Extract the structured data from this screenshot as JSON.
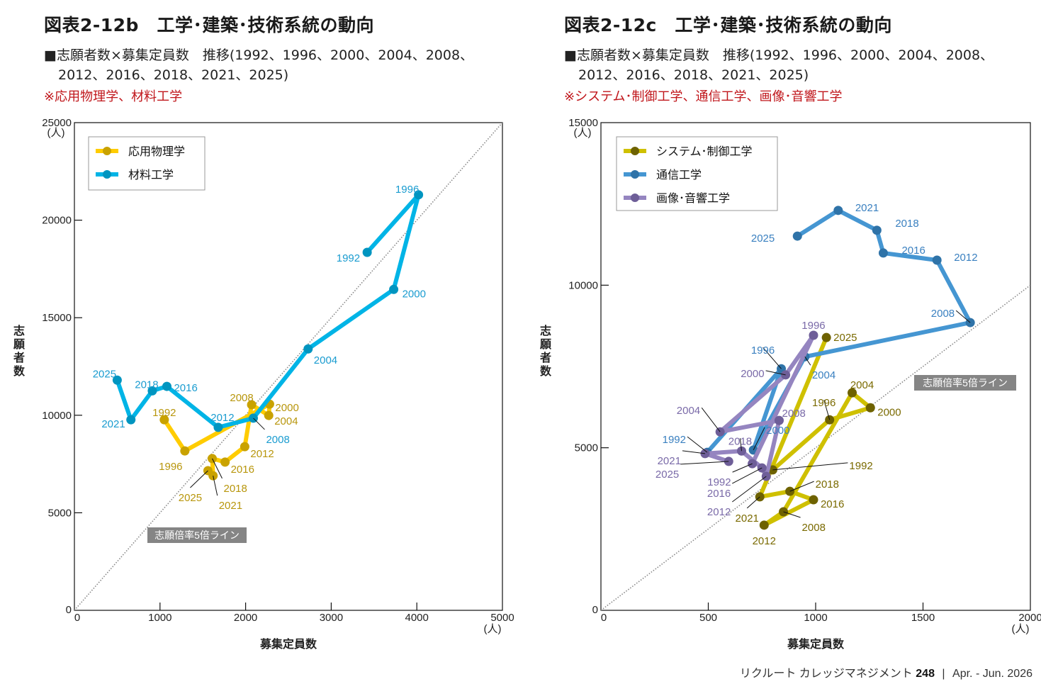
{
  "footer": {
    "magazine": "リクルート カレッジマネジメント",
    "issue": "248",
    "separator": "|",
    "date": "Apr. - Jun. 2026"
  },
  "chart_data": [
    {
      "id": "fig-2-12b",
      "type": "line",
      "title": "図表2-12b　工学･建築･技術系統の動向",
      "subtitle_line1": "■志願者数×募集定員数　推移(1992、1996、2000、2004、2008、",
      "subtitle_line2": "2012、2016、2018、2021、2025)",
      "note": "※応用物理学、材料工学",
      "xlabel": "募集定員数",
      "ylabel": "志願者数",
      "x_unit": "(人)",
      "y_unit": "(人)",
      "xlim": [
        0,
        5000
      ],
      "ylim": [
        0,
        25000
      ],
      "xticks": [
        0,
        1000,
        2000,
        3000,
        4000,
        5000
      ],
      "yticks": [
        0,
        5000,
        10000,
        15000,
        20000,
        25000
      ],
      "grid": false,
      "legend_position": "top-left",
      "reference_line": {
        "label": "志願倍率5倍ライン",
        "ratio": 5
      },
      "series": [
        {
          "name": "応用物理学",
          "line_color": "#ffcc00",
          "marker_color": "#c9a200",
          "label_color": "#b8960c",
          "points": [
            {
              "year": "1992",
              "x": 1050,
              "y": 9770
            },
            {
              "year": "1996",
              "x": 1290,
              "y": 8170
            },
            {
              "year": "2000",
              "x": 2280,
              "y": 10570
            },
            {
              "year": "2004",
              "x": 2270,
              "y": 9990
            },
            {
              "year": "2008",
              "x": 2070,
              "y": 10540
            },
            {
              "year": "2012",
              "x": 1990,
              "y": 8390
            },
            {
              "year": "2016",
              "x": 1760,
              "y": 7600
            },
            {
              "year": "2018",
              "x": 1610,
              "y": 7780
            },
            {
              "year": "2021",
              "x": 1620,
              "y": 6900
            },
            {
              "year": "2025",
              "x": 1560,
              "y": 7160
            }
          ]
        },
        {
          "name": "材料工学",
          "line_color": "#00b4e6",
          "marker_color": "#0095c0",
          "label_color": "#1a9cd0",
          "points": [
            {
              "year": "1992",
              "x": 3420,
              "y": 18350
            },
            {
              "year": "1996",
              "x": 4020,
              "y": 21300
            },
            {
              "year": "2000",
              "x": 3730,
              "y": 16450
            },
            {
              "year": "2004",
              "x": 2730,
              "y": 13400
            },
            {
              "year": "2008",
              "x": 2090,
              "y": 9850
            },
            {
              "year": "2012",
              "x": 1680,
              "y": 9380
            },
            {
              "year": "2016",
              "x": 1080,
              "y": 11480
            },
            {
              "year": "2018",
              "x": 910,
              "y": 11250
            },
            {
              "year": "2021",
              "x": 660,
              "y": 9770
            },
            {
              "year": "2025",
              "x": 500,
              "y": 11800
            }
          ]
        }
      ]
    },
    {
      "id": "fig-2-12c",
      "type": "line",
      "title": "図表2-12c　工学･建築･技術系統の動向",
      "subtitle_line1": "■志願者数×募集定員数　推移(1992、1996、2000、2004、2008、",
      "subtitle_line2": "2012、2016、2018、2021、2025)",
      "note": "※システム･制御工学、通信工学、画像･音響工学",
      "xlabel": "募集定員数",
      "ylabel": "志願者数",
      "x_unit": "(人)",
      "y_unit": "(人)",
      "xlim": [
        0,
        2000
      ],
      "ylim": [
        0,
        15000
      ],
      "xticks": [
        0,
        500,
        1000,
        1500,
        2000
      ],
      "yticks": [
        0,
        5000,
        10000,
        15000
      ],
      "grid": false,
      "legend_position": "top-left",
      "reference_line": {
        "label": "志願倍率5倍ライン",
        "ratio": 5
      },
      "series": [
        {
          "name": "システム･制御工学",
          "line_color": "#cfc000",
          "marker_color": "#6e6200",
          "label_color": "#7a6a00",
          "points": [
            {
              "year": "1992",
              "x": 800,
              "y": 4320
            },
            {
              "year": "1996",
              "x": 1065,
              "y": 5860
            },
            {
              "year": "2000",
              "x": 1255,
              "y": 6230
            },
            {
              "year": "2004",
              "x": 1170,
              "y": 6690
            },
            {
              "year": "2008",
              "x": 850,
              "y": 3030
            },
            {
              "year": "2012",
              "x": 760,
              "y": 2620
            },
            {
              "year": "2016",
              "x": 990,
              "y": 3400
            },
            {
              "year": "2018",
              "x": 880,
              "y": 3660
            },
            {
              "year": "2021",
              "x": 740,
              "y": 3490
            },
            {
              "year": "2025",
              "x": 1050,
              "y": 8390
            }
          ]
        },
        {
          "name": "通信工学",
          "line_color": "#4596d2",
          "marker_color": "#2f73a8",
          "label_color": "#3a80c0",
          "points": [
            {
              "year": "1992",
              "x": 495,
              "y": 4860
            },
            {
              "year": "1996",
              "x": 840,
              "y": 7430
            },
            {
              "year": "2000",
              "x": 710,
              "y": 4930
            },
            {
              "year": "2004",
              "x": 950,
              "y": 7800
            },
            {
              "year": "2008",
              "x": 1720,
              "y": 8850
            },
            {
              "year": "2012",
              "x": 1565,
              "y": 10770
            },
            {
              "year": "2016",
              "x": 1315,
              "y": 10990
            },
            {
              "year": "2018",
              "x": 1285,
              "y": 11690
            },
            {
              "year": "2021",
              "x": 1105,
              "y": 12300
            },
            {
              "year": "2025",
              "x": 915,
              "y": 11510
            }
          ]
        },
        {
          "name": "画像･音響工学",
          "line_color": "#9585c0",
          "marker_color": "#6e5e98",
          "label_color": "#7a6aa8",
          "points": [
            {
              "year": "1992",
              "x": 705,
              "y": 4510
            },
            {
              "year": "1996",
              "x": 990,
              "y": 8460
            },
            {
              "year": "2000",
              "x": 860,
              "y": 7240
            },
            {
              "year": "2004",
              "x": 555,
              "y": 5490
            },
            {
              "year": "2008",
              "x": 830,
              "y": 5840
            },
            {
              "year": "2012",
              "x": 770,
              "y": 4120
            },
            {
              "year": "2016",
              "x": 750,
              "y": 4380
            },
            {
              "year": "2018",
              "x": 655,
              "y": 4900
            },
            {
              "year": "2021",
              "x": 485,
              "y": 4820
            },
            {
              "year": "2025",
              "x": 595,
              "y": 4580
            }
          ]
        }
      ]
    }
  ]
}
